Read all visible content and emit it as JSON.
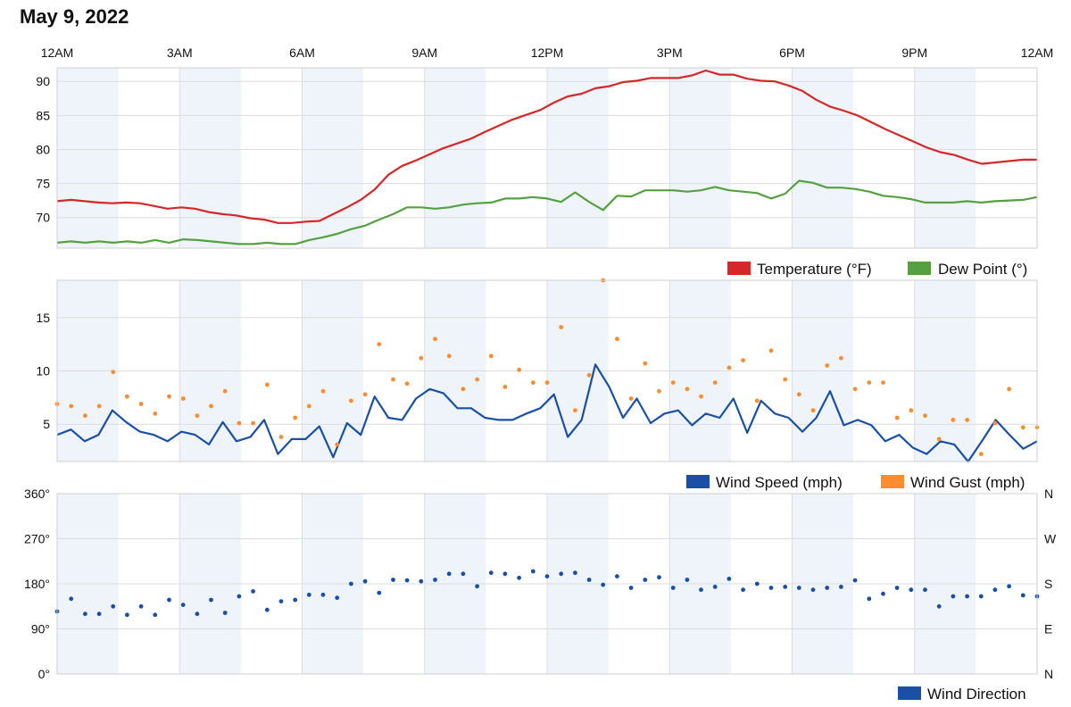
{
  "title": "May 9, 2022",
  "chart_data": [
    {
      "type": "line",
      "name": "temperature-dewpoint",
      "x_ticks": [
        "12AM",
        "3AM",
        "6AM",
        "9AM",
        "12PM",
        "3PM",
        "6PM",
        "9PM",
        "12AM"
      ],
      "y_ticks": [
        "70",
        "75",
        "80",
        "85",
        "90"
      ],
      "ylim": [
        65.5,
        92
      ],
      "grid": true,
      "legend_position": "bottom-right",
      "series": [
        {
          "name": "Temperature (°F)",
          "color": "#d62728",
          "values": [
            72.4,
            72.6,
            72.4,
            72.2,
            72.1,
            72.2,
            72.1,
            71.7,
            71.3,
            71.5,
            71.3,
            70.8,
            70.5,
            70.3,
            69.9,
            69.7,
            69.2,
            69.2,
            69.4,
            69.5,
            70.5,
            71.5,
            72.6,
            74.1,
            76.3,
            77.6,
            78.4,
            79.3,
            80.2,
            80.9,
            81.6,
            82.6,
            83.5,
            84.4,
            85.1,
            85.8,
            86.9,
            87.8,
            88.2,
            89.0,
            89.3,
            89.9,
            90.1,
            90.5,
            90.5,
            90.5,
            90.9,
            91.6,
            91.0,
            91.0,
            90.4,
            90.1,
            90.0,
            89.4,
            88.6,
            87.3,
            86.3,
            85.7,
            85.0,
            84.0,
            83.0,
            82.1,
            81.2,
            80.3,
            79.6,
            79.2,
            78.5,
            77.9,
            78.1,
            78.3,
            78.5,
            78.5
          ]
        },
        {
          "name": "Dew Point (°)",
          "color": "#55a041",
          "values": [
            66.3,
            66.5,
            66.3,
            66.5,
            66.3,
            66.5,
            66.3,
            66.7,
            66.3,
            66.8,
            66.7,
            66.5,
            66.3,
            66.1,
            66.1,
            66.3,
            66.1,
            66.1,
            66.7,
            67.1,
            67.6,
            68.3,
            68.8,
            69.7,
            70.5,
            71.5,
            71.5,
            71.3,
            71.5,
            71.9,
            72.1,
            72.2,
            72.8,
            72.8,
            73.0,
            72.8,
            72.3,
            73.7,
            72.3,
            71.1,
            73.2,
            73.1,
            74.0,
            74.0,
            74.0,
            73.8,
            74.0,
            74.5,
            74.0,
            73.8,
            73.6,
            72.8,
            73.5,
            75.4,
            75.1,
            74.4,
            74.4,
            74.2,
            73.8,
            73.2,
            73.0,
            72.7,
            72.2,
            72.2,
            72.2,
            72.4,
            72.2,
            72.4,
            72.5,
            72.6,
            73.0
          ]
        }
      ]
    },
    {
      "type": "line",
      "name": "wind-speed-gust",
      "x_ticks": [
        "12AM",
        "3AM",
        "6AM",
        "9AM",
        "12PM",
        "3PM",
        "6PM",
        "9PM",
        "12AM"
      ],
      "y_ticks": [
        "5",
        "10",
        "15"
      ],
      "ylim": [
        1.5,
        18.5
      ],
      "grid": true,
      "legend_position": "bottom-right",
      "series": [
        {
          "name": "Wind Speed (mph)",
          "color": "#1a4fa8",
          "values": [
            4.0,
            4.5,
            3.4,
            4.0,
            6.3,
            5.2,
            4.3,
            4.0,
            3.4,
            4.3,
            4.0,
            3.1,
            5.2,
            3.4,
            3.8,
            5.4,
            2.2,
            3.6,
            3.6,
            4.8,
            1.9,
            5.1,
            4.0,
            7.6,
            5.6,
            5.4,
            7.4,
            8.3,
            7.9,
            6.5,
            6.5,
            5.6,
            5.4,
            5.4,
            6.0,
            6.5,
            7.8,
            3.8,
            5.4,
            10.6,
            8.5,
            5.6,
            7.4,
            5.1,
            6.0,
            6.3,
            4.9,
            6.0,
            5.6,
            7.4,
            4.2,
            7.2,
            6.0,
            5.6,
            4.3,
            5.6,
            8.1,
            4.9,
            5.4,
            4.9,
            3.4,
            4.0,
            2.8,
            2.2,
            3.4,
            3.1,
            1.5,
            3.4,
            5.4,
            4.0,
            2.7,
            3.4
          ]
        },
        {
          "name": "Wind Gust (mph)",
          "color": "#ff8c2e",
          "points": [
            [
              0,
              6.9
            ],
            [
              1,
              6.7
            ],
            [
              2,
              5.8
            ],
            [
              3,
              6.7
            ],
            [
              4,
              9.9
            ],
            [
              5,
              7.6
            ],
            [
              6,
              6.9
            ],
            [
              7,
              6.0
            ],
            [
              8,
              7.6
            ],
            [
              9,
              7.4
            ],
            [
              10,
              5.8
            ],
            [
              11,
              6.7
            ],
            [
              12,
              8.1
            ],
            [
              13,
              5.1
            ],
            [
              14,
              5.1
            ],
            [
              15,
              8.7
            ],
            [
              16,
              3.8
            ],
            [
              17,
              5.6
            ],
            [
              18,
              6.7
            ],
            [
              19,
              8.1
            ],
            [
              20,
              3.1
            ],
            [
              21,
              7.2
            ],
            [
              22,
              7.8
            ],
            [
              23,
              12.5
            ],
            [
              24,
              9.2
            ],
            [
              25,
              8.8
            ],
            [
              26,
              11.2
            ],
            [
              27,
              13.0
            ],
            [
              28,
              11.4
            ],
            [
              29,
              8.3
            ],
            [
              30,
              9.2
            ],
            [
              31,
              11.4
            ],
            [
              32,
              8.5
            ],
            [
              33,
              10.1
            ],
            [
              34,
              8.9
            ],
            [
              35,
              8.9
            ],
            [
              36,
              14.1
            ],
            [
              37,
              6.3
            ],
            [
              38,
              9.6
            ],
            [
              39,
              18.5
            ],
            [
              40,
              13.0
            ],
            [
              41,
              7.4
            ],
            [
              42,
              10.7
            ],
            [
              43,
              8.1
            ],
            [
              44,
              8.9
            ],
            [
              45,
              8.3
            ],
            [
              46,
              7.6
            ],
            [
              47,
              8.9
            ],
            [
              48,
              10.3
            ],
            [
              49,
              11.0
            ],
            [
              50,
              7.2
            ],
            [
              51,
              11.9
            ],
            [
              52,
              9.2
            ],
            [
              53,
              7.8
            ],
            [
              54,
              6.3
            ],
            [
              55,
              10.5
            ],
            [
              56,
              11.2
            ],
            [
              57,
              8.3
            ],
            [
              58,
              8.9
            ],
            [
              59,
              8.9
            ],
            [
              60,
              5.6
            ],
            [
              61,
              6.3
            ],
            [
              62,
              5.8
            ],
            [
              63,
              3.6
            ],
            [
              64,
              5.4
            ],
            [
              65,
              5.4
            ],
            [
              66,
              2.2
            ],
            [
              67,
              5.1
            ],
            [
              68,
              8.3
            ],
            [
              69,
              4.7
            ],
            [
              70,
              4.7
            ]
          ]
        }
      ]
    },
    {
      "type": "scatter",
      "name": "wind-direction",
      "x_ticks": [
        "12AM",
        "3AM",
        "6AM",
        "9AM",
        "12PM",
        "3PM",
        "6PM",
        "9PM",
        "12AM"
      ],
      "y_ticks": [
        "0°",
        "90°",
        "180°",
        "270°",
        "360°"
      ],
      "y_ticks_right": [
        "N",
        "E",
        "S",
        "W",
        "N"
      ],
      "ylim": [
        0,
        360
      ],
      "grid": true,
      "legend_position": "bottom-right",
      "series": [
        {
          "name": "Wind Direction",
          "color": "#1a4fa8",
          "values": [
            125,
            150,
            120,
            120,
            135,
            118,
            135,
            118,
            148,
            138,
            120,
            148,
            122,
            155,
            165,
            128,
            145,
            148,
            158,
            158,
            152,
            180,
            185,
            162,
            188,
            187,
            185,
            188,
            200,
            200,
            175,
            202,
            200,
            192,
            205,
            195,
            200,
            202,
            188,
            178,
            195,
            172,
            188,
            193,
            172,
            188,
            168,
            174,
            190,
            168,
            180,
            172,
            174,
            172,
            168,
            172,
            174,
            187,
            150,
            160,
            172,
            168,
            168,
            135,
            155,
            155,
            155,
            168,
            175,
            157,
            155
          ]
        }
      ]
    }
  ],
  "legend": {
    "temperature": "Temperature (°F)",
    "dewpoint": "Dew Point (°)",
    "wind_speed": "Wind Speed (mph)",
    "wind_gust": "Wind Gust (mph)",
    "wind_direction": "Wind Direction"
  }
}
